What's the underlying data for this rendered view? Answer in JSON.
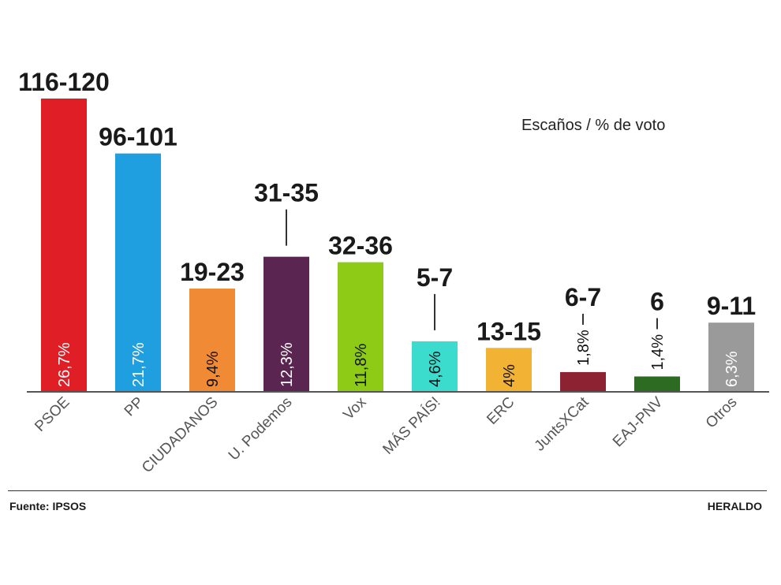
{
  "chart_data": {
    "type": "bar",
    "subtitle": "Escaños / % de voto",
    "categories": [
      "PSOE",
      "PP",
      "CIUDADANOS",
      "U. Podemos",
      "Vox",
      "MÁS PAÍS!",
      "ERC",
      "JuntsXCat",
      "EAJ-PNV",
      "Otros"
    ],
    "values": [
      26.7,
      21.7,
      9.4,
      12.3,
      11.8,
      4.6,
      4,
      1.8,
      1.4,
      6.3
    ],
    "vote_labels": [
      "26,7%",
      "21,7%",
      "9,4%",
      "12,3%",
      "11,8%",
      "4,6%",
      "4%",
      "1,8%",
      "1,4%",
      "6,3%"
    ],
    "seat_labels": [
      "116-120",
      "96-101",
      "19-23",
      "31-35",
      "32-36",
      "5-7",
      "13-15",
      "6-7",
      "6",
      "9-11"
    ],
    "colors": [
      "#e01e26",
      "#1f9fe0",
      "#f18a34",
      "#5a2550",
      "#8dcb17",
      "#3bdccd",
      "#f2b234",
      "#8c2232",
      "#2d6a22",
      "#9a9a9a"
    ],
    "ylim": [
      0,
      26.7
    ],
    "grid": false,
    "legend": "none"
  },
  "footer": {
    "source": "Fuente: IPSOS",
    "brand": "HERALDO"
  }
}
